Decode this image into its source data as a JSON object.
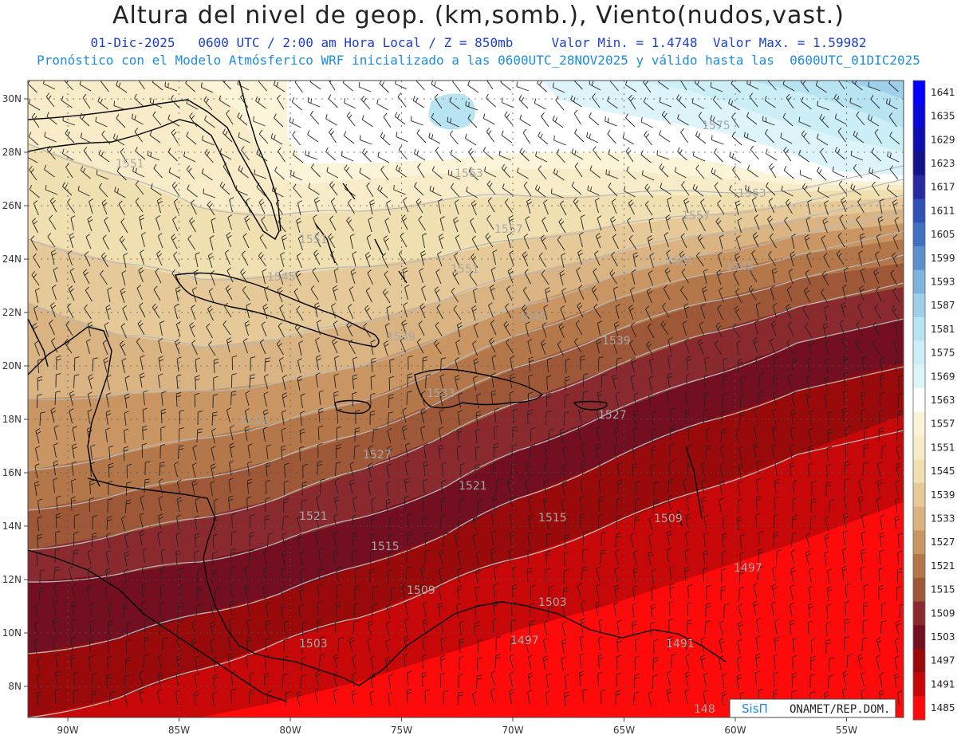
{
  "header": {
    "title": "Altura del nivel de geop. (km,somb.), Viento(nudos,vast.)",
    "date": "01-Dic-2025",
    "time_info": "0600 UTC / 2:00 am Hora Local / Z = 850mb",
    "min_label": "Valor Min. = 1.4748",
    "max_label": "Valor Max. = 1.59982",
    "model_info": "Pronóstico con el Modelo Atmósferico WRF inicializado a las 0600UTC_28NOV2025 y válido hasta las  0600UTC_01DIC2025"
  },
  "axes": {
    "lat_labels": [
      "30N",
      "28N",
      "26N",
      "24N",
      "22N",
      "20N",
      "18N",
      "16N",
      "14N",
      "12N",
      "10N",
      "8N"
    ],
    "lon_labels": [
      "90W",
      "85W",
      "80W",
      "75W",
      "70W",
      "65W",
      "60W",
      "55W"
    ]
  },
  "colorbar": {
    "levels": [
      1641,
      1635,
      1629,
      1623,
      1617,
      1611,
      1605,
      1599,
      1593,
      1587,
      1581,
      1575,
      1569,
      1563,
      1557,
      1551,
      1545,
      1539,
      1533,
      1527,
      1521,
      1515,
      1509,
      1503,
      1497,
      1491,
      1485
    ],
    "colors": [
      "#0000ff",
      "#0a0ad8",
      "#0f0fb0",
      "#141488",
      "#2a2aa0",
      "#3050b8",
      "#4070c0",
      "#5c90cc",
      "#7fb4dc",
      "#9fd0ea",
      "#b8e4f2",
      "#cceff7",
      "#ddf5fa",
      "#ffffff",
      "#fbf4d8",
      "#f7ebc8",
      "#f0dfb0",
      "#e6c999",
      "#d9b382",
      "#c89563",
      "#b4774a",
      "#9e5838",
      "#8a2a2e",
      "#730f20",
      "#9a0a0a",
      "#c80808",
      "#ff0a0a"
    ]
  },
  "contour_labels": [
    "1575",
    "1563",
    "1563",
    "1551",
    "1557",
    "1557",
    "1551",
    "1551",
    "1551",
    "1545",
    "1545",
    "1545",
    "1539",
    "1539",
    "1533",
    "1533",
    "1527",
    "1527",
    "1521",
    "1521",
    "1515",
    "1515",
    "1509",
    "1509",
    "1503",
    "1503",
    "1497",
    "1497",
    "1491",
    "148"
  ],
  "credit": {
    "left": "SisΠ",
    "right": "ONAMET/REP.DOM."
  }
}
